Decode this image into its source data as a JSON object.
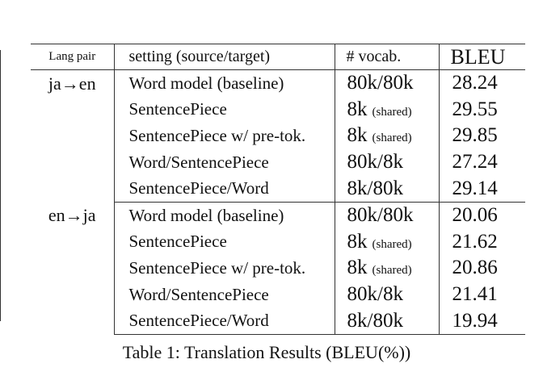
{
  "table": {
    "headers": {
      "pair": "Lang pair",
      "setting": "setting (source/target)",
      "vocab": "# vocab.",
      "bleu": "BLEU"
    },
    "groups": [
      {
        "pair": "ja→en",
        "rows": [
          {
            "setting": "Word model (baseline)",
            "vocab": "80k/80k",
            "note": "",
            "bleu": "28.24"
          },
          {
            "setting": "SentencePiece",
            "vocab": "8k",
            "note": "(shared)",
            "bleu": "29.55"
          },
          {
            "setting": "SentencePiece w/ pre-tok.",
            "vocab": "8k",
            "note": "(shared)",
            "bleu": "29.85"
          },
          {
            "setting": "Word/SentencePiece",
            "vocab": "80k/8k",
            "note": "",
            "bleu": "27.24"
          },
          {
            "setting": "SentencePiece/Word",
            "vocab": "8k/80k",
            "note": "",
            "bleu": "29.14"
          }
        ]
      },
      {
        "pair": "en→ja",
        "rows": [
          {
            "setting": "Word model (baseline)",
            "vocab": "80k/80k",
            "note": "",
            "bleu": "20.06"
          },
          {
            "setting": "SentencePiece",
            "vocab": "8k",
            "note": "(shared)",
            "bleu": "21.62"
          },
          {
            "setting": "SentencePiece w/ pre-tok.",
            "vocab": "8k",
            "note": "(shared)",
            "bleu": "20.86"
          },
          {
            "setting": "Word/SentencePiece",
            "vocab": "80k/8k",
            "note": "",
            "bleu": "21.41"
          },
          {
            "setting": "SentencePiece/Word",
            "vocab": "8k/80k",
            "note": "",
            "bleu": "19.94"
          }
        ]
      }
    ]
  },
  "caption": "Table 1: Translation Results (BLEU(%))"
}
